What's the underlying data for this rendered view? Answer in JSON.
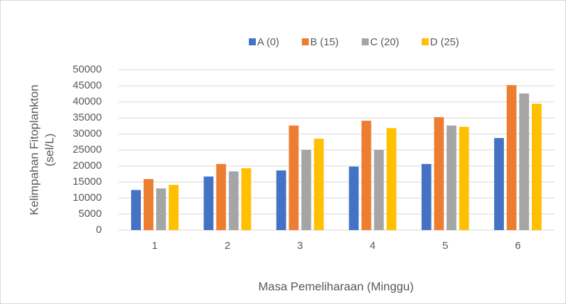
{
  "chart_data": {
    "type": "bar",
    "ylabel": [
      "Kelimpahan Fitoplankton",
      "(sel/L)"
    ],
    "xlabel": "Masa Pemeliharaan (Minggu)",
    "categories": [
      "1",
      "2",
      "3",
      "4",
      "5",
      "6"
    ],
    "series": [
      {
        "name": "A (0)",
        "color": "#4472c4",
        "values": [
          12500,
          16700,
          18600,
          19800,
          20600,
          28700
        ]
      },
      {
        "name": "B (15)",
        "color": "#ed7d31",
        "values": [
          15900,
          20600,
          32600,
          34100,
          35200,
          45200
        ]
      },
      {
        "name": "C (20)",
        "color": "#a5a5a5",
        "values": [
          13000,
          18300,
          25000,
          25000,
          32600,
          42600
        ]
      },
      {
        "name": "D (25)",
        "color": "#ffc000",
        "values": [
          14100,
          19300,
          28500,
          31800,
          32200,
          39400
        ]
      }
    ],
    "ylim": [
      0,
      50000
    ],
    "yticks": [
      0,
      5000,
      10000,
      15000,
      20000,
      25000,
      30000,
      35000,
      40000,
      45000,
      50000
    ],
    "grid": true,
    "legend": "top"
  }
}
